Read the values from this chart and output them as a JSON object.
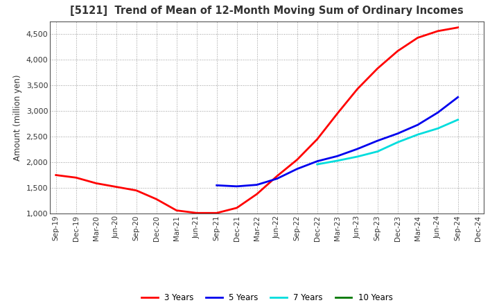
{
  "title": "[5121]  Trend of Mean of 12-Month Moving Sum of Ordinary Incomes",
  "ylabel": "Amount (million yen)",
  "ylim": [
    1000,
    4750
  ],
  "yticks": [
    1000,
    1500,
    2000,
    2500,
    3000,
    3500,
    4000,
    4500
  ],
  "background_color": "#ffffff",
  "grid_color": "#999999",
  "x_labels": [
    "Sep-19",
    "Dec-19",
    "Mar-20",
    "Jun-20",
    "Sep-20",
    "Dec-20",
    "Mar-21",
    "Jun-21",
    "Sep-21",
    "Dec-21",
    "Mar-22",
    "Jun-22",
    "Sep-22",
    "Dec-22",
    "Mar-23",
    "Jun-23",
    "Sep-23",
    "Dec-23",
    "Mar-24",
    "Jun-24",
    "Sep-24",
    "Dec-24"
  ],
  "series": [
    {
      "name": "3 Years",
      "color": "#ff0000",
      "linewidth": 2.0,
      "values": [
        1750,
        1700,
        1590,
        1520,
        1450,
        1280,
        1060,
        1010,
        1010,
        1110,
        1380,
        1730,
        2050,
        2450,
        2950,
        3430,
        3830,
        4170,
        4430,
        4560,
        4630,
        null
      ]
    },
    {
      "name": "5 Years",
      "color": "#0000ee",
      "linewidth": 2.0,
      "values": [
        null,
        null,
        null,
        null,
        null,
        null,
        null,
        null,
        1550,
        1530,
        1560,
        1680,
        1870,
        2020,
        2120,
        2260,
        2420,
        2560,
        2730,
        2970,
        3270,
        null
      ]
    },
    {
      "name": "7 Years",
      "color": "#00dddd",
      "linewidth": 2.0,
      "values": [
        null,
        null,
        null,
        null,
        null,
        null,
        null,
        null,
        null,
        null,
        null,
        null,
        null,
        1960,
        2030,
        2110,
        2210,
        2390,
        2540,
        2660,
        2830,
        null
      ]
    },
    {
      "name": "10 Years",
      "color": "#007700",
      "linewidth": 2.0,
      "values": [
        null,
        null,
        null,
        null,
        null,
        null,
        null,
        null,
        null,
        null,
        null,
        null,
        null,
        null,
        null,
        null,
        null,
        null,
        null,
        null,
        null,
        null
      ]
    }
  ],
  "legend_entries": [
    "3 Years",
    "5 Years",
    "7 Years",
    "10 Years"
  ],
  "legend_colors": [
    "#ff0000",
    "#0000ee",
    "#00dddd",
    "#007700"
  ]
}
